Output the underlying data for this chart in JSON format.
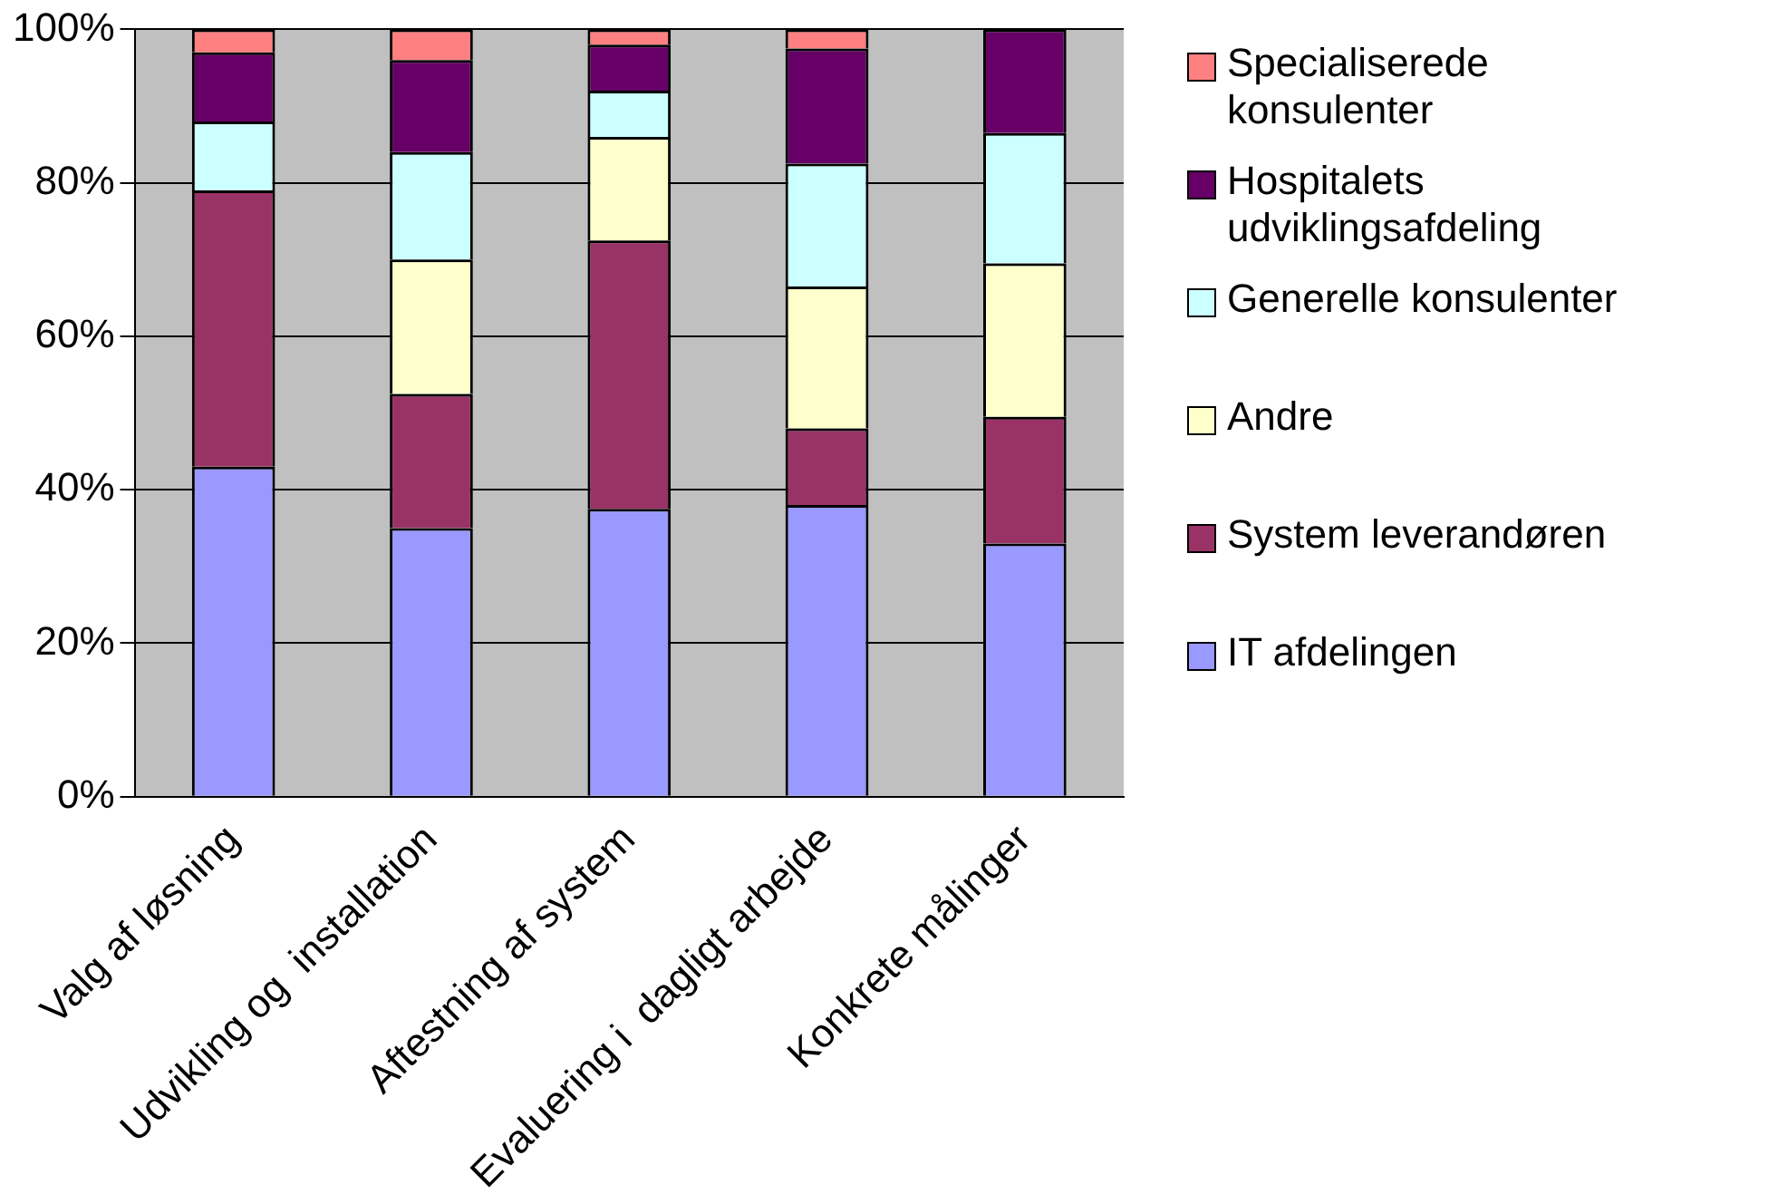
{
  "chart_data": {
    "type": "bar",
    "stacked": true,
    "categories": [
      "Valg af løsning",
      "Udvikling og  installation",
      "Aftestning af system",
      "Evaluering i  dagligt arbejde",
      "Konkrete målinger"
    ],
    "series": [
      {
        "name": "IT afdelingen",
        "color": "#9999ff",
        "values": [
          43,
          35,
          37.5,
          38,
          33
        ]
      },
      {
        "name": "System leverandøren",
        "color": "#993366",
        "values": [
          36,
          17.5,
          35,
          10,
          16.5
        ]
      },
      {
        "name": "Andre",
        "color": "#ffffcc",
        "values": [
          0,
          17.5,
          13.5,
          18.5,
          20
        ]
      },
      {
        "name": "Generelle konsulenter",
        "color": "#ccffff",
        "values": [
          9,
          14,
          6,
          16,
          17
        ]
      },
      {
        "name": "Hospitalets udviklingsafdeling",
        "color": "#660066",
        "values": [
          9,
          12,
          6,
          15,
          13.5
        ]
      },
      {
        "name": "Specialiserede konsulenter",
        "color": "#ff8080",
        "values": [
          3,
          4,
          2,
          2.5,
          0
        ]
      }
    ],
    "ylim": [
      0,
      100
    ],
    "yticks": [
      {
        "value": 0,
        "label": "0%"
      },
      {
        "value": 20,
        "label": "20%"
      },
      {
        "value": 40,
        "label": "40%"
      },
      {
        "value": 60,
        "label": "60%"
      },
      {
        "value": 80,
        "label": "80%"
      },
      {
        "value": 100,
        "label": "100%"
      }
    ],
    "grid": "y",
    "legend": "right"
  }
}
